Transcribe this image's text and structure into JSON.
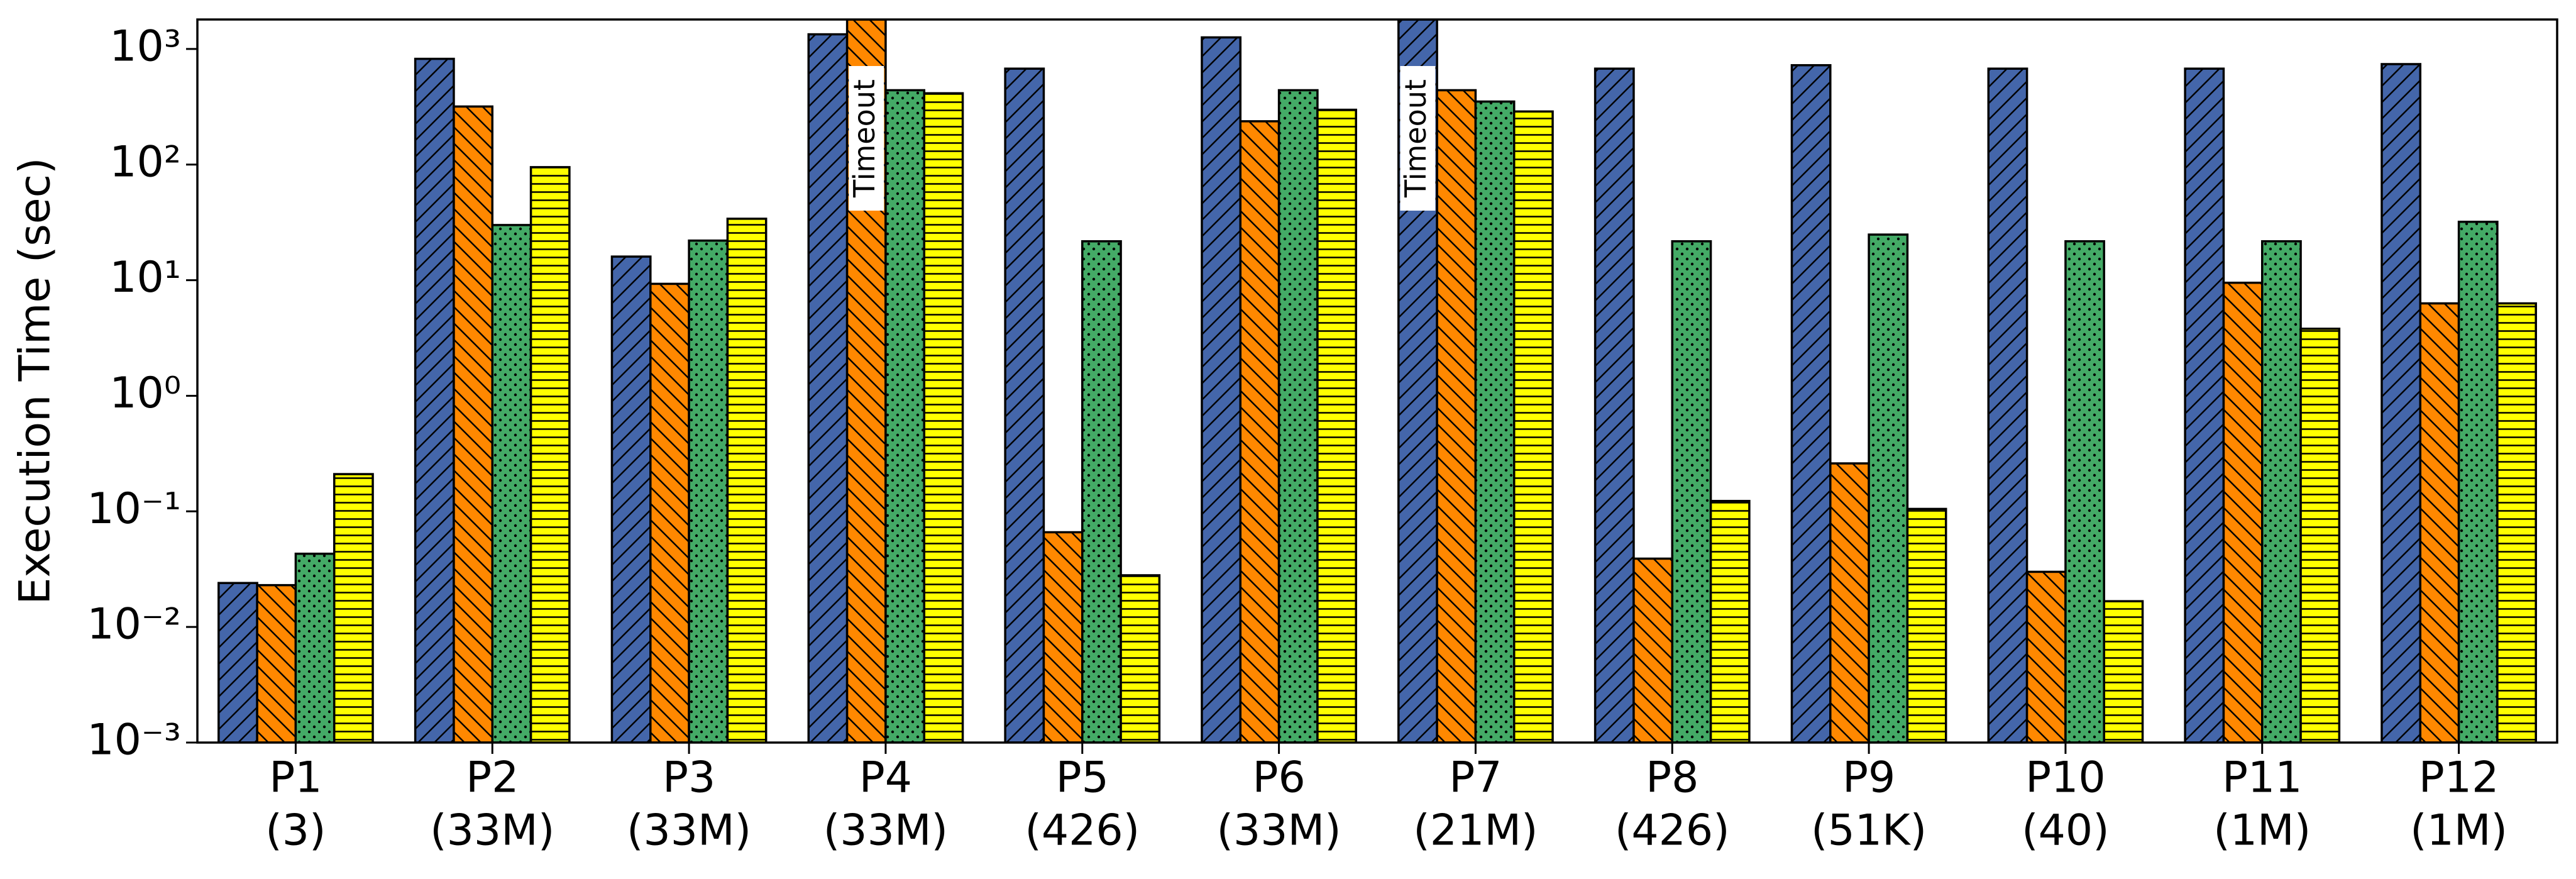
{
  "chart_data": {
    "type": "bar",
    "y_label": "Execution Time (sec)",
    "log_y": true,
    "categories": [
      [
        "P1",
        "(3)"
      ],
      [
        "P2",
        "(33M)"
      ],
      [
        "P3",
        "(33M)"
      ],
      [
        "P4",
        "(33M)"
      ],
      [
        "P5",
        "(426)"
      ],
      [
        "P6",
        "(33M)"
      ],
      [
        "P7",
        "(21M)"
      ],
      [
        "P8",
        "(426)"
      ],
      [
        "P9",
        "(51K)"
      ],
      [
        "P10",
        "(40)"
      ],
      [
        "P11",
        "(1M)"
      ],
      [
        "P12",
        "(1M)"
      ]
    ],
    "series": [
      {
        "color": "#4466aa",
        "hatch": "//",
        "values": [
          0.024,
          822,
          16,
          1340,
          676,
          1260,
          1800,
          676,
          724,
          676,
          676,
          740
        ]
      },
      {
        "color": "#ff8800",
        "hatch": "\\\\",
        "values": [
          0.023,
          318,
          9.3,
          1800,
          0.066,
          237,
          440,
          0.039,
          0.26,
          0.03,
          9.5,
          6.3
        ]
      },
      {
        "color": "#44aa66",
        "hatch": "..",
        "values": [
          0.043,
          30,
          22,
          440,
          21.7,
          440,
          351,
          21.7,
          24.8,
          21.7,
          21.7,
          32
        ]
      },
      {
        "color": "#ffff00",
        "hatch": "--",
        "values": [
          0.21,
          95,
          34,
          414,
          0.028,
          298,
          288,
          0.123,
          0.105,
          0.0167,
          3.8,
          6.3
        ]
      }
    ],
    "annotations": [
      {
        "text": "Timeout",
        "category": 3,
        "series": 1
      },
      {
        "text": "Timeout",
        "category": 6,
        "series": 0
      }
    ],
    "ylim": [
      0.001,
      1800
    ],
    "yticks": [
      {
        "value": 0.001,
        "label": "10⁻³"
      },
      {
        "value": 0.01,
        "label": "10⁻²"
      },
      {
        "value": 0.1,
        "label": "10⁻¹"
      },
      {
        "value": 1,
        "label": "10⁰"
      },
      {
        "value": 10,
        "label": "10¹"
      },
      {
        "value": 100,
        "label": "10²"
      },
      {
        "value": 1000,
        "label": "10³"
      }
    ]
  }
}
